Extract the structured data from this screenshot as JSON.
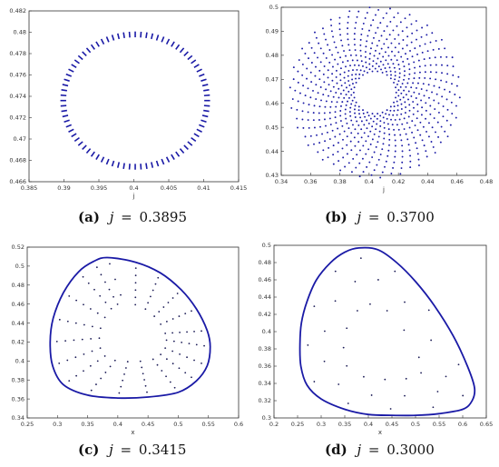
{
  "colors": {
    "series": "#1a1aa6",
    "axis": "#333333",
    "background": "#ffffff"
  },
  "chart_data": [
    {
      "type": "scatter",
      "panel_label": "(a)",
      "caption_var": "j",
      "caption_value": "0.3895",
      "xlabel": "j",
      "xlim": [
        0.385,
        0.415
      ],
      "ylim": [
        0.466,
        0.482
      ],
      "xticks": [
        "0.385",
        "0.39",
        "0.395",
        "0.4",
        "0.405",
        "0.41",
        "0.415"
      ],
      "yticks": [
        "0.466",
        "0.468",
        "0.47",
        "0.472",
        "0.474",
        "0.476",
        "0.478",
        "0.48",
        "0.482"
      ],
      "pattern": "closed ring of short dashed marks",
      "curve": {
        "kind": "ring",
        "cx": 0.4002,
        "cy": 0.4736,
        "rx": 0.0103,
        "ry": 0.0062,
        "tilt": -0.15
      }
    },
    {
      "type": "scatter",
      "panel_label": "(b)",
      "caption_var": "j",
      "caption_value": "0.3700",
      "xlabel": "j",
      "xlim": [
        0.34,
        0.48
      ],
      "ylim": [
        0.43,
        0.5
      ],
      "xticks": [
        "0.34",
        "0.36",
        "0.38",
        "0.4",
        "0.42",
        "0.44",
        "0.46",
        "0.48"
      ],
      "yticks": [
        "0.43",
        "0.44",
        "0.45",
        "0.46",
        "0.47",
        "0.48",
        "0.49",
        "0.5"
      ],
      "pattern": "dotted spiral arms filling an annulus",
      "curve": {
        "kind": "spiral",
        "cx": 0.404,
        "cy": 0.4645,
        "r_in": 0.25,
        "r_out": 1.0,
        "rx": 0.058,
        "ry": 0.0355
      }
    },
    {
      "type": "scatter",
      "panel_label": "(c)",
      "caption_var": "j",
      "caption_value": "0.3415",
      "xlabel": "x",
      "xlim": [
        0.25,
        0.6
      ],
      "ylim": [
        0.34,
        0.52
      ],
      "xticks": [
        "0.25",
        "0.3",
        "0.35",
        "0.4",
        "0.45",
        "0.5",
        "0.55",
        "0.6"
      ],
      "yticks": [
        "0.34",
        "0.36",
        "0.38",
        "0.4",
        "0.42",
        "0.44",
        "0.46",
        "0.48",
        "0.5",
        "0.52"
      ],
      "pattern": "solid limit cycle with interior dots",
      "curve": {
        "kind": "loop",
        "points": [
          [
            0.383,
            0.509
          ],
          [
            0.43,
            0.504
          ],
          [
            0.47,
            0.493
          ],
          [
            0.505,
            0.475
          ],
          [
            0.53,
            0.455
          ],
          [
            0.548,
            0.432
          ],
          [
            0.553,
            0.415
          ],
          [
            0.548,
            0.395
          ],
          [
            0.53,
            0.379
          ],
          [
            0.5,
            0.367
          ],
          [
            0.45,
            0.362
          ],
          [
            0.4,
            0.361
          ],
          [
            0.35,
            0.364
          ],
          [
            0.31,
            0.375
          ],
          [
            0.292,
            0.395
          ],
          [
            0.288,
            0.42
          ],
          [
            0.293,
            0.445
          ],
          [
            0.31,
            0.472
          ],
          [
            0.335,
            0.494
          ],
          [
            0.36,
            0.505
          ]
        ]
      }
    },
    {
      "type": "scatter",
      "panel_label": "(d)",
      "caption_var": "j",
      "caption_value": "0.3000",
      "xlabel": "x",
      "xlim": [
        0.2,
        0.65
      ],
      "ylim": [
        0.3,
        0.5
      ],
      "xticks": [
        "0.2",
        "0.25",
        "0.3",
        "0.35",
        "0.4",
        "0.45",
        "0.5",
        "0.55",
        "0.6",
        "0.65"
      ],
      "yticks": [
        "0.3",
        "0.32",
        "0.34",
        "0.36",
        "0.38",
        "0.4",
        "0.42",
        "0.44",
        "0.46",
        "0.48",
        "0.5"
      ],
      "pattern": "solid limit cycle with sparse interior dots",
      "curve": {
        "kind": "loop",
        "points": [
          [
            0.38,
            0.497
          ],
          [
            0.42,
            0.495
          ],
          [
            0.46,
            0.48
          ],
          [
            0.5,
            0.458
          ],
          [
            0.54,
            0.43
          ],
          [
            0.58,
            0.395
          ],
          [
            0.61,
            0.36
          ],
          [
            0.625,
            0.335
          ],
          [
            0.62,
            0.32
          ],
          [
            0.6,
            0.31
          ],
          [
            0.55,
            0.305
          ],
          [
            0.5,
            0.303
          ],
          [
            0.45,
            0.303
          ],
          [
            0.4,
            0.304
          ],
          [
            0.35,
            0.31
          ],
          [
            0.3,
            0.322
          ],
          [
            0.27,
            0.338
          ],
          [
            0.257,
            0.36
          ],
          [
            0.255,
            0.385
          ],
          [
            0.258,
            0.41
          ],
          [
            0.27,
            0.435
          ],
          [
            0.29,
            0.46
          ],
          [
            0.32,
            0.48
          ],
          [
            0.35,
            0.492
          ]
        ]
      }
    }
  ]
}
